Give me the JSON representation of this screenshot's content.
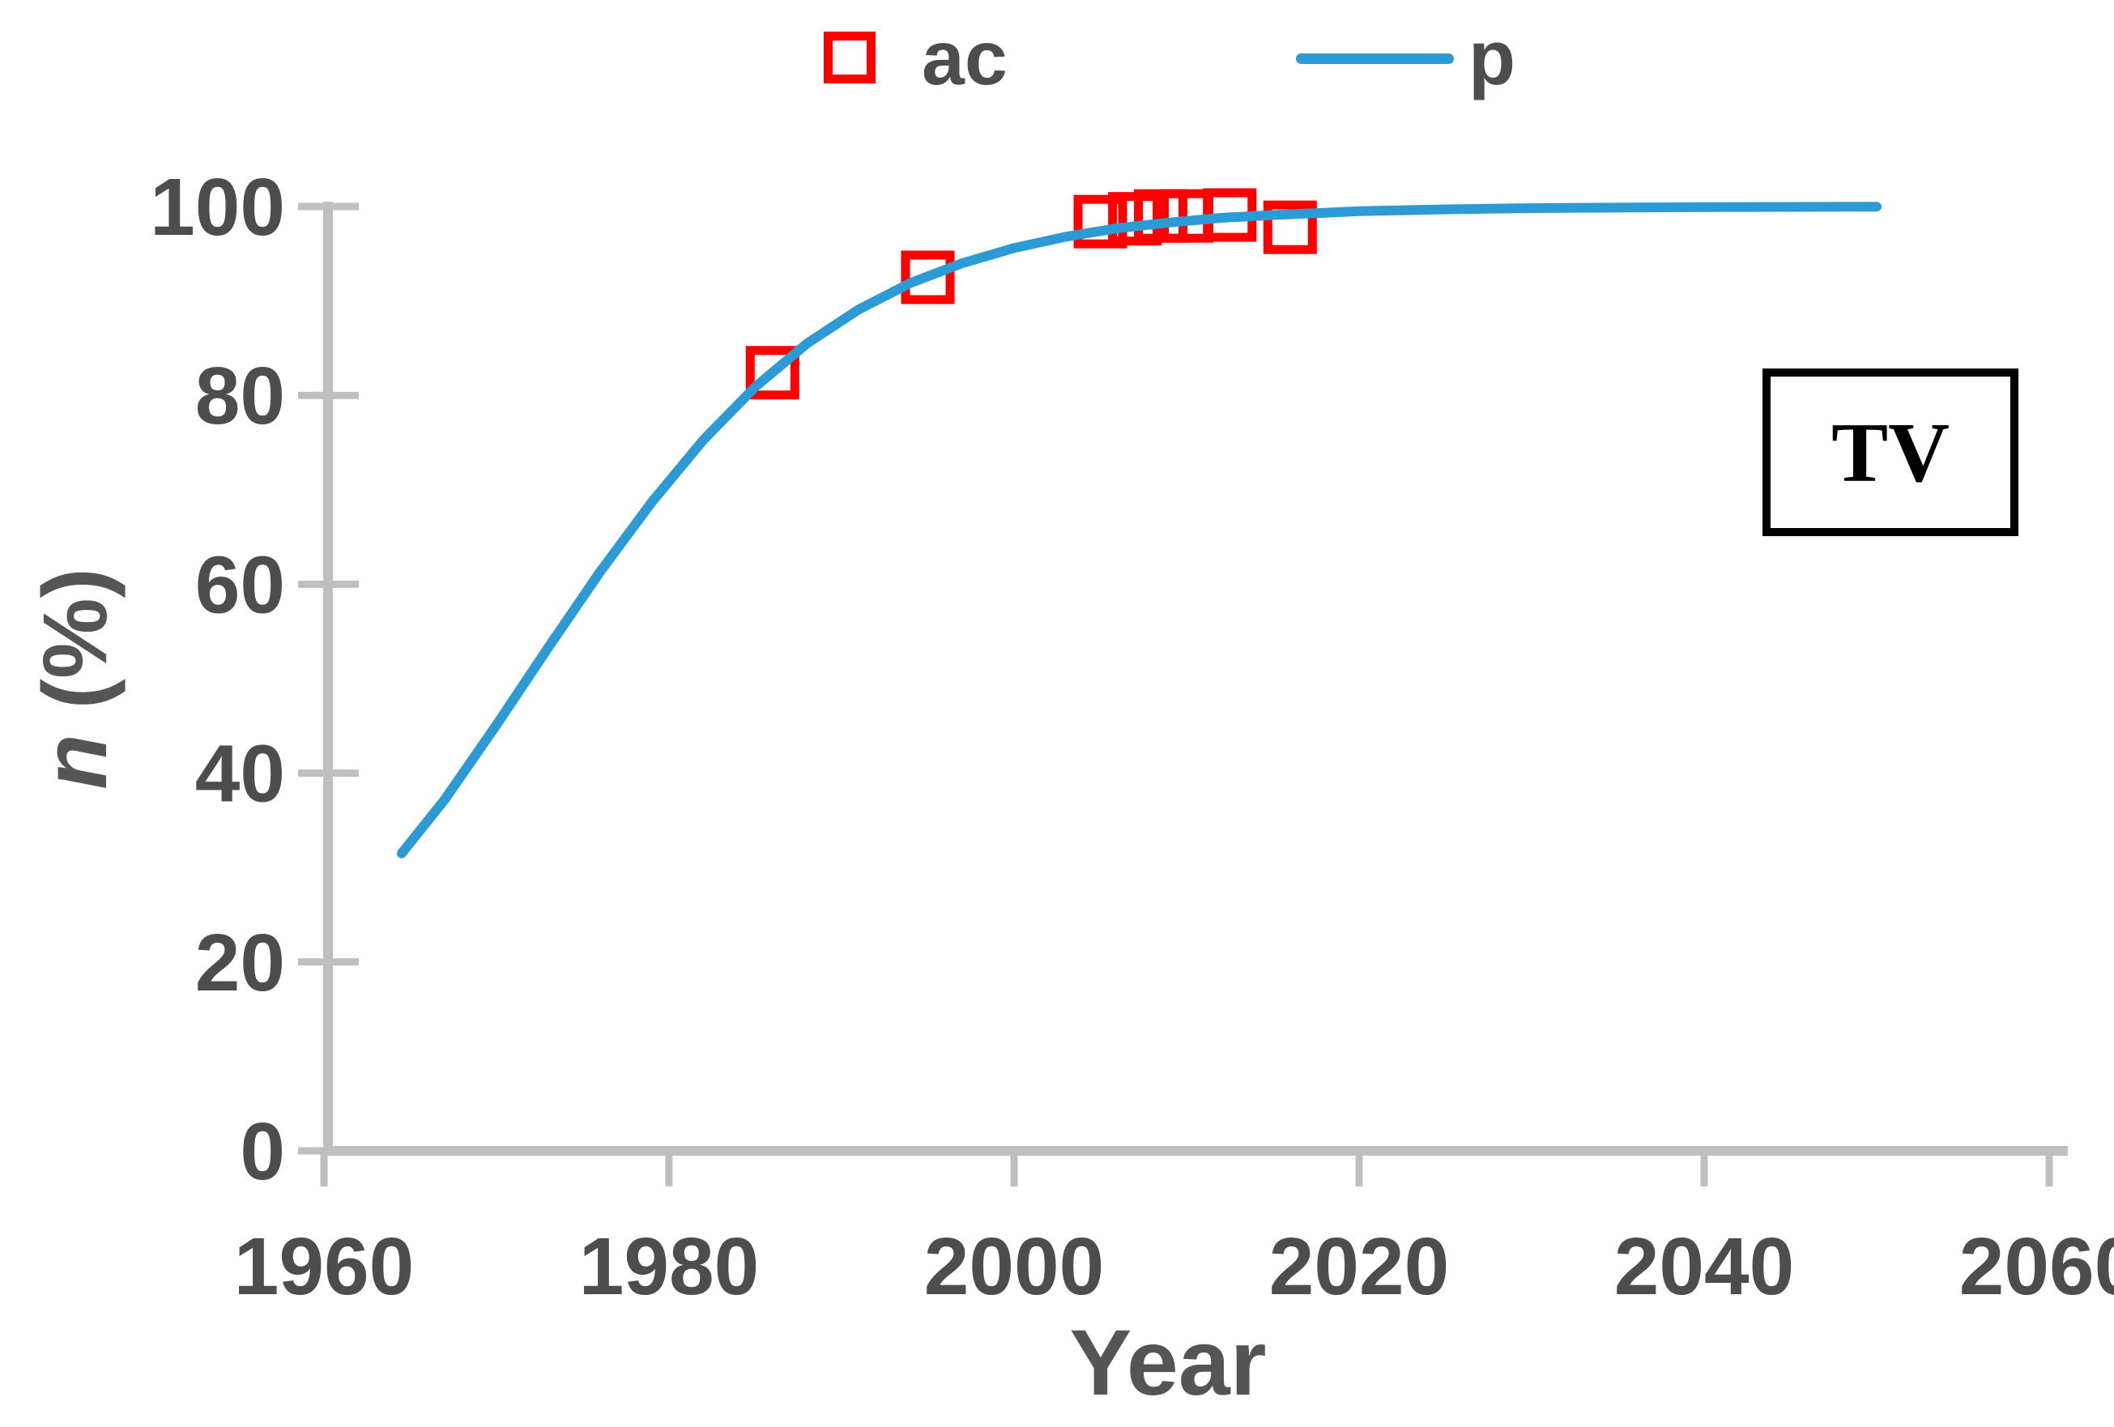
{
  "page": {
    "background": "#FFFFFF"
  },
  "legend": {
    "items": [
      {
        "label": "ac",
        "swatch": "open-square-marker",
        "color": "#FF0000"
      },
      {
        "label": "p",
        "swatch": "line",
        "color": "#2B9AD5"
      }
    ]
  },
  "axes": {
    "x_title": "Year",
    "y_title_italic": "n",
    "y_title_rest": " (%)",
    "axis_color": "#BFBFBF",
    "tick_label_color": "#4D4D4D"
  },
  "annotation": {
    "text": "TV"
  },
  "chart_data": {
    "type": "line",
    "title": "",
    "xlabel": "Year",
    "ylabel": "n (%)",
    "xlim": [
      1960,
      2060
    ],
    "ylim": [
      0,
      100
    ],
    "x_ticks": [
      1960,
      1980,
      2000,
      2020,
      2040,
      2060
    ],
    "y_ticks": [
      0,
      20,
      40,
      60,
      80,
      100
    ],
    "grid": false,
    "legend_position": "top-center",
    "annotations": [
      {
        "text": "TV",
        "x": 2050,
        "y": 74,
        "style": "black-outlined-box"
      }
    ],
    "series": [
      {
        "name": "ac",
        "type": "scatter",
        "marker": "open-square",
        "color": "#FF0000",
        "points": [
          [
            1986,
            82.4
          ],
          [
            1995,
            92.5
          ],
          [
            2005,
            98.4
          ],
          [
            2007,
            98.7
          ],
          [
            2008.5,
            99.0
          ],
          [
            2010,
            99.0
          ],
          [
            2012.5,
            99.1
          ],
          [
            2016,
            97.8
          ]
        ]
      },
      {
        "name": "p",
        "type": "line",
        "color": "#2B9AD5",
        "points": [
          [
            1964.5,
            31.5
          ],
          [
            1967,
            37.2
          ],
          [
            1970,
            45.1
          ],
          [
            1973,
            53.3
          ],
          [
            1976,
            61.3
          ],
          [
            1979,
            68.7
          ],
          [
            1982,
            75.3
          ],
          [
            1985,
            80.9
          ],
          [
            1988,
            85.5
          ],
          [
            1991,
            89.1
          ],
          [
            1994,
            91.9
          ],
          [
            1997,
            94.0
          ],
          [
            2000,
            95.6
          ],
          [
            2003,
            96.8
          ],
          [
            2006,
            97.7
          ],
          [
            2009,
            98.3
          ],
          [
            2012,
            98.8
          ],
          [
            2015,
            99.1
          ],
          [
            2020,
            99.5
          ],
          [
            2025,
            99.7
          ],
          [
            2030,
            99.83
          ],
          [
            2040,
            99.94
          ],
          [
            2050,
            99.98
          ]
        ]
      }
    ]
  }
}
